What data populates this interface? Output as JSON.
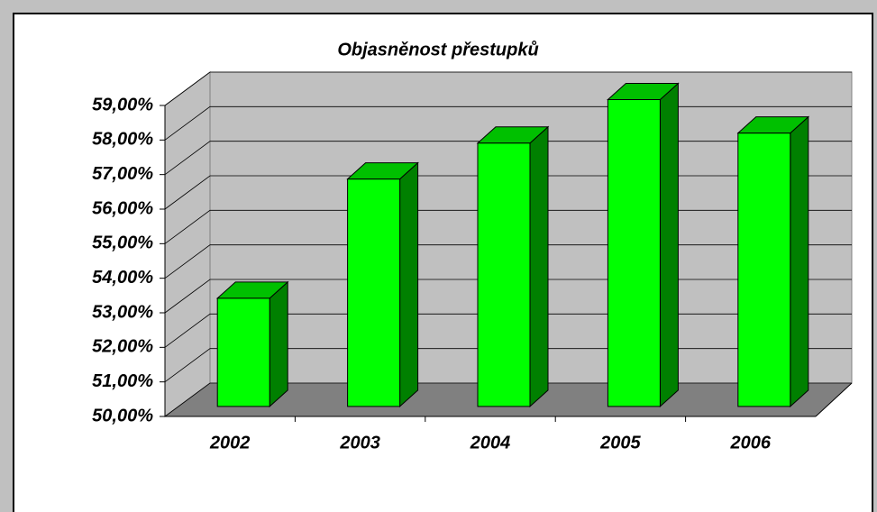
{
  "chart_data": {
    "type": "bar",
    "title": "Objasněnost přestupků",
    "categories": [
      "2002",
      "2003",
      "2004",
      "2005",
      "2006"
    ],
    "values": [
      53.13,
      56.58,
      57.62,
      58.88,
      57.91
    ],
    "color": "#00ff00",
    "ylim": [
      50,
      59
    ],
    "yticks": [
      {
        "value": 50,
        "label": "50,00%"
      },
      {
        "value": 51,
        "label": "51,00%"
      },
      {
        "value": 52,
        "label": "52,00%"
      },
      {
        "value": 53,
        "label": "53,00%"
      },
      {
        "value": 54,
        "label": "54,00%"
      },
      {
        "value": 55,
        "label": "55,00%"
      },
      {
        "value": 56,
        "label": "56,00%"
      },
      {
        "value": 57,
        "label": "57,00%"
      },
      {
        "value": 58,
        "label": "58,00%"
      },
      {
        "value": 59,
        "label": "59,00%"
      }
    ],
    "grid": true
  }
}
